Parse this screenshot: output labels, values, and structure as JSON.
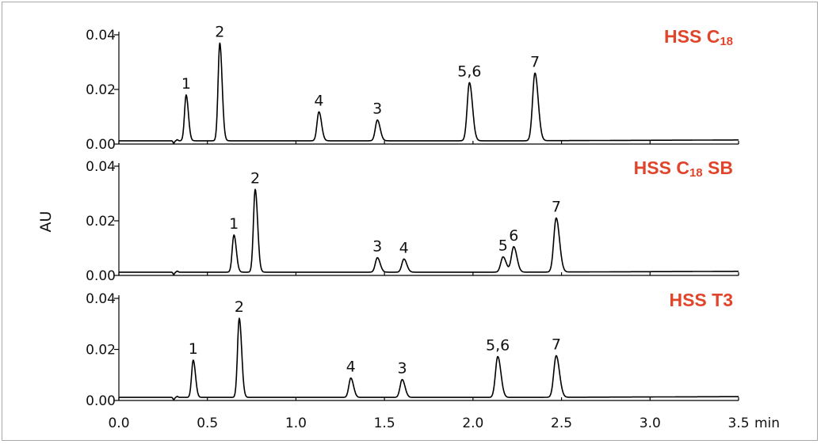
{
  "chart_data": {
    "type": "line",
    "ylabel": "AU",
    "x_unit_label": "min",
    "xlim": [
      0.0,
      3.5
    ],
    "x_ticks": [
      "0.0",
      "0.5",
      "1.0",
      "1.5",
      "2.0",
      "2.5",
      "3.0",
      "3.5"
    ],
    "ylim": [
      0.0,
      0.04
    ],
    "y_ticks": [
      "0.00",
      "0.02",
      "0.04"
    ],
    "panels": [
      {
        "title_main": "HSS C",
        "title_sub": "18",
        "title_suffix": "",
        "baseline": 0.0012,
        "peaks": [
          {
            "label": "1",
            "x": 0.38,
            "height": 0.018
          },
          {
            "label": "2",
            "x": 0.57,
            "height": 0.037
          },
          {
            "label": "4",
            "x": 1.13,
            "height": 0.0118
          },
          {
            "label": "3",
            "x": 1.46,
            "height": 0.0088
          },
          {
            "label": "5,6",
            "x": 1.98,
            "height": 0.0225
          },
          {
            "label": "7",
            "x": 2.35,
            "height": 0.026
          }
        ]
      },
      {
        "title_main": "HSS C",
        "title_sub": "18",
        "title_suffix": " SB",
        "baseline": 0.0012,
        "peaks": [
          {
            "label": "1",
            "x": 0.65,
            "height": 0.0148
          },
          {
            "label": "2",
            "x": 0.77,
            "height": 0.0315
          },
          {
            "label": "3",
            "x": 1.46,
            "height": 0.0065
          },
          {
            "label": "4",
            "x": 1.61,
            "height": 0.006
          },
          {
            "label": "5",
            "x": 2.17,
            "height": 0.0068
          },
          {
            "label": "6",
            "x": 2.23,
            "height": 0.0105
          },
          {
            "label": "7",
            "x": 2.47,
            "height": 0.021
          }
        ]
      },
      {
        "title_main": "HSS T3",
        "title_sub": "",
        "title_suffix": "",
        "baseline": 0.0012,
        "peaks": [
          {
            "label": "1",
            "x": 0.42,
            "height": 0.0158
          },
          {
            "label": "2",
            "x": 0.68,
            "height": 0.0322
          },
          {
            "label": "4",
            "x": 1.31,
            "height": 0.0088
          },
          {
            "label": "3",
            "x": 1.6,
            "height": 0.0082
          },
          {
            "label": "5,6",
            "x": 2.14,
            "height": 0.0172
          },
          {
            "label": "7",
            "x": 2.47,
            "height": 0.0175
          }
        ]
      }
    ]
  }
}
